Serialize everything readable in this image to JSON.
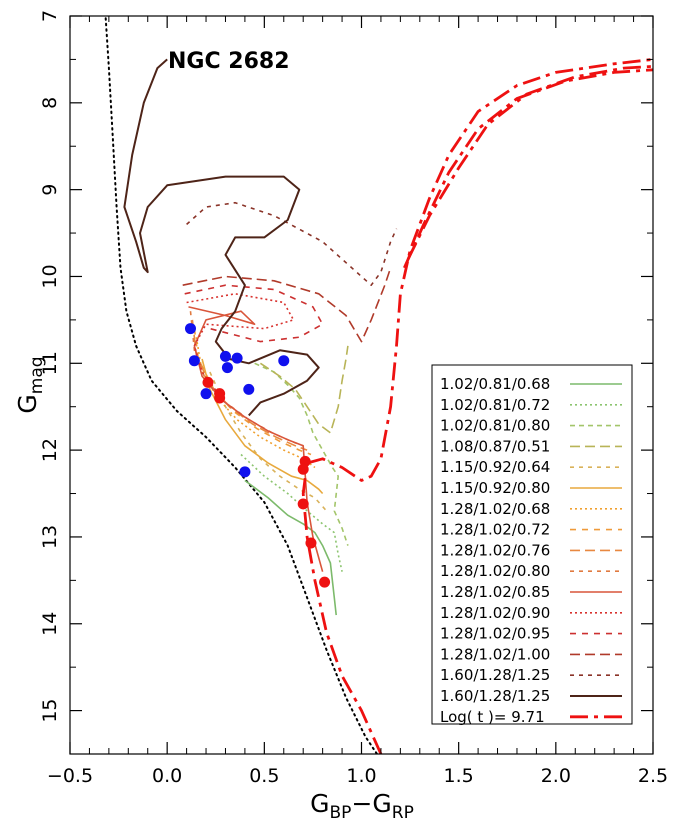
{
  "chart_data": {
    "type": "line",
    "title": "NGC 2682",
    "xlabel": {
      "main": "G",
      "sub1": "BP",
      "sep": "−G",
      "sub2": "RP"
    },
    "ylabel": {
      "main": "G",
      "sub": "mag"
    },
    "xlim": [
      -0.5,
      2.5
    ],
    "ylim": [
      15.5,
      7.0
    ],
    "y_inverted": true,
    "xticks": [
      -0.5,
      0.0,
      0.5,
      1.0,
      1.5,
      2.0,
      2.5
    ],
    "xtick_labels": [
      "−0.5",
      "0.0",
      "0.5",
      "1.0",
      "1.5",
      "2.0",
      "2.5"
    ],
    "yticks": [
      7,
      8,
      9,
      10,
      11,
      12,
      13,
      14,
      15
    ],
    "ytick_labels": [
      "7",
      "8",
      "9",
      "10",
      "11",
      "12",
      "13",
      "14",
      "15"
    ],
    "grid": false,
    "legend_position": "bottom-right",
    "zams": {
      "color": "#000000",
      "points": [
        [
          -0.32,
          6.9
        ],
        [
          -0.3,
          7.6
        ],
        [
          -0.28,
          8.4
        ],
        [
          -0.26,
          9.2
        ],
        [
          -0.24,
          9.9
        ],
        [
          -0.21,
          10.4
        ],
        [
          -0.16,
          10.8
        ],
        [
          -0.08,
          11.2
        ],
        [
          0.05,
          11.55
        ],
        [
          0.2,
          11.85
        ],
        [
          0.35,
          12.2
        ],
        [
          0.5,
          12.6
        ],
        [
          0.62,
          13.1
        ],
        [
          0.72,
          13.7
        ],
        [
          0.82,
          14.3
        ],
        [
          0.92,
          14.85
        ],
        [
          1.02,
          15.3
        ],
        [
          1.08,
          15.5
        ]
      ]
    },
    "series": [
      {
        "name": "1.02/0.81/0.68",
        "color": "#7cba6b",
        "dash": "",
        "width": 1.6,
        "points": [
          [
            0.4,
            12.35
          ],
          [
            0.52,
            12.55
          ],
          [
            0.62,
            12.75
          ],
          [
            0.7,
            12.85
          ],
          [
            0.76,
            12.95
          ],
          [
            0.8,
            13.1
          ],
          [
            0.84,
            13.3
          ],
          [
            0.86,
            13.7
          ],
          [
            0.87,
            13.9
          ]
        ]
      },
      {
        "name": "1.02/0.81/0.72",
        "color": "#8cc46f",
        "dash": "2,3",
        "width": 1.6,
        "points": [
          [
            0.38,
            12.05
          ],
          [
            0.5,
            12.3
          ],
          [
            0.62,
            12.5
          ],
          [
            0.72,
            12.7
          ],
          [
            0.8,
            12.85
          ],
          [
            0.86,
            12.95
          ],
          [
            0.88,
            13.2
          ],
          [
            0.9,
            13.4
          ]
        ]
      },
      {
        "name": "1.02/0.81/0.80",
        "color": "#a3c56a",
        "dash": "5,4",
        "width": 1.6,
        "points": [
          [
            0.45,
            11.0
          ],
          [
            0.55,
            11.1
          ],
          [
            0.62,
            11.25
          ],
          [
            0.68,
            11.4
          ],
          [
            0.72,
            11.6
          ],
          [
            0.75,
            11.8
          ],
          [
            0.8,
            12.0
          ],
          [
            0.85,
            12.2
          ],
          [
            0.88,
            12.3
          ],
          [
            0.86,
            12.7
          ],
          [
            0.9,
            12.9
          ],
          [
            0.93,
            13.1
          ]
        ]
      },
      {
        "name": "1.08/0.87/0.51",
        "color": "#b8b457",
        "dash": "10,5",
        "width": 1.6,
        "points": [
          [
            0.48,
            11.0
          ],
          [
            0.58,
            11.15
          ],
          [
            0.66,
            11.3
          ],
          [
            0.72,
            11.5
          ],
          [
            0.78,
            11.7
          ],
          [
            0.84,
            11.8
          ],
          [
            0.88,
            11.5
          ],
          [
            0.9,
            11.2
          ],
          [
            0.92,
            10.95
          ],
          [
            0.93,
            10.8
          ]
        ]
      },
      {
        "name": "1.15/0.92/0.64",
        "color": "#d9b25a",
        "dash": "4,5",
        "width": 1.6,
        "points": [
          [
            0.22,
            11.1
          ],
          [
            0.3,
            11.5
          ],
          [
            0.38,
            11.8
          ],
          [
            0.48,
            12.1
          ],
          [
            0.58,
            12.3
          ],
          [
            0.68,
            12.45
          ],
          [
            0.76,
            12.55
          ],
          [
            0.82,
            12.7
          ]
        ]
      },
      {
        "name": "1.15/0.92/0.80",
        "color": "#e8a93d",
        "dash": "",
        "width": 1.6,
        "points": [
          [
            0.18,
            10.95
          ],
          [
            0.22,
            11.3
          ],
          [
            0.3,
            11.65
          ],
          [
            0.4,
            11.95
          ],
          [
            0.52,
            12.15
          ],
          [
            0.64,
            12.3
          ],
          [
            0.72,
            12.35
          ],
          [
            0.78,
            12.45
          ],
          [
            0.8,
            12.5
          ]
        ]
      },
      {
        "name": "1.28/1.02/0.68",
        "color": "#f0a030",
        "dash": "2,3",
        "width": 1.6,
        "points": [
          [
            0.15,
            10.7
          ],
          [
            0.18,
            11.1
          ],
          [
            0.26,
            11.4
          ],
          [
            0.36,
            11.65
          ],
          [
            0.48,
            11.85
          ],
          [
            0.6,
            12.0
          ],
          [
            0.7,
            12.1
          ],
          [
            0.76,
            12.2
          ]
        ]
      },
      {
        "name": "1.28/1.02/0.72",
        "color": "#ef9a3a",
        "dash": "6,6",
        "width": 1.6,
        "points": [
          [
            0.14,
            10.6
          ],
          [
            0.16,
            10.95
          ],
          [
            0.24,
            11.3
          ],
          [
            0.34,
            11.55
          ],
          [
            0.46,
            11.75
          ],
          [
            0.58,
            11.9
          ],
          [
            0.68,
            12.0
          ],
          [
            0.74,
            12.05
          ]
        ]
      },
      {
        "name": "1.28/1.02/0.76",
        "color": "#e88840",
        "dash": "10,5",
        "width": 1.6,
        "points": [
          [
            0.13,
            10.5
          ],
          [
            0.15,
            10.9
          ],
          [
            0.22,
            11.25
          ],
          [
            0.32,
            11.5
          ],
          [
            0.44,
            11.7
          ],
          [
            0.56,
            11.85
          ],
          [
            0.66,
            11.95
          ],
          [
            0.72,
            12.0
          ]
        ]
      },
      {
        "name": "1.28/1.02/0.80",
        "color": "#e07a40",
        "dash": "4,5",
        "width": 1.6,
        "points": [
          [
            0.12,
            10.4
          ],
          [
            0.14,
            10.85
          ],
          [
            0.2,
            11.2
          ],
          [
            0.3,
            11.45
          ],
          [
            0.42,
            11.65
          ],
          [
            0.54,
            11.8
          ],
          [
            0.64,
            11.9
          ],
          [
            0.7,
            11.95
          ]
        ]
      },
      {
        "name": "1.28/1.02/0.85",
        "color": "#d9553a",
        "dash": "",
        "width": 1.6,
        "points": [
          [
            0.11,
            10.35
          ],
          [
            0.3,
            10.45
          ],
          [
            0.45,
            10.55
          ],
          [
            0.38,
            10.4
          ],
          [
            0.2,
            10.5
          ],
          [
            0.14,
            10.8
          ],
          [
            0.18,
            11.15
          ],
          [
            0.28,
            11.42
          ],
          [
            0.4,
            11.62
          ],
          [
            0.52,
            11.78
          ],
          [
            0.62,
            11.88
          ],
          [
            0.7,
            11.95
          ],
          [
            0.72,
            12.6
          ],
          [
            0.75,
            13.0
          ],
          [
            0.8,
            13.4
          ]
        ]
      },
      {
        "name": "1.28/1.02/0.90",
        "color": "#d8322e",
        "dash": "2,3",
        "width": 1.6,
        "points": [
          [
            0.1,
            10.3
          ],
          [
            0.35,
            10.2
          ],
          [
            0.6,
            10.3
          ],
          [
            0.65,
            10.5
          ],
          [
            0.5,
            10.6
          ],
          [
            0.2,
            10.55
          ],
          [
            0.14,
            10.8
          ],
          [
            0.18,
            11.1
          ],
          [
            0.28,
            11.4
          ]
        ]
      },
      {
        "name": "1.28/1.02/0.95",
        "color": "#cc3030",
        "dash": "6,6",
        "width": 1.6,
        "points": [
          [
            0.09,
            10.2
          ],
          [
            0.3,
            10.1
          ],
          [
            0.55,
            10.15
          ],
          [
            0.75,
            10.35
          ],
          [
            0.8,
            10.55
          ],
          [
            0.68,
            10.7
          ],
          [
            0.48,
            10.75
          ],
          [
            0.22,
            10.6
          ]
        ]
      },
      {
        "name": "1.28/1.02/1.00",
        "color": "#b03a2a",
        "dash": "10,5",
        "width": 1.6,
        "points": [
          [
            0.08,
            10.1
          ],
          [
            0.3,
            10.0
          ],
          [
            0.55,
            10.05
          ],
          [
            0.78,
            10.2
          ],
          [
            0.92,
            10.45
          ],
          [
            1.0,
            10.75
          ],
          [
            1.05,
            10.5
          ],
          [
            1.12,
            10.1
          ],
          [
            1.15,
            9.9
          ]
        ]
      },
      {
        "name": "1.60/1.28/1.25",
        "color": "#8a3328",
        "dash": "4,5",
        "width": 1.6,
        "points": [
          [
            0.1,
            9.4
          ],
          [
            0.2,
            9.2
          ],
          [
            0.35,
            9.15
          ],
          [
            0.55,
            9.3
          ],
          [
            0.8,
            9.6
          ],
          [
            1.0,
            10.0
          ],
          [
            1.05,
            10.1
          ],
          [
            1.1,
            9.95
          ],
          [
            1.15,
            9.6
          ],
          [
            1.18,
            9.45
          ]
        ]
      },
      {
        "name": "1.60/1.28/1.25",
        "color": "#4e2418",
        "dash": "",
        "width": 2.0,
        "points": [
          [
            0.0,
            7.5
          ],
          [
            -0.05,
            7.6
          ],
          [
            -0.12,
            8.0
          ],
          [
            -0.18,
            8.6
          ],
          [
            -0.22,
            9.2
          ],
          [
            -0.16,
            9.6
          ],
          [
            -0.12,
            9.9
          ],
          [
            -0.1,
            9.95
          ],
          [
            -0.14,
            9.5
          ],
          [
            -0.1,
            9.2
          ],
          [
            0.0,
            8.95
          ],
          [
            0.3,
            8.85
          ],
          [
            0.6,
            8.85
          ],
          [
            0.68,
            9.0
          ],
          [
            0.62,
            9.35
          ],
          [
            0.5,
            9.55
          ],
          [
            0.35,
            9.55
          ],
          [
            0.3,
            9.75
          ],
          [
            0.4,
            10.1
          ],
          [
            0.35,
            10.4
          ],
          [
            0.28,
            10.6
          ],
          [
            0.25,
            10.75
          ],
          [
            0.32,
            10.95
          ],
          [
            0.42,
            11.0
          ],
          [
            0.58,
            10.85
          ],
          [
            0.72,
            10.9
          ],
          [
            0.78,
            11.05
          ],
          [
            0.72,
            11.2
          ],
          [
            0.6,
            11.35
          ],
          [
            0.48,
            11.45
          ],
          [
            0.42,
            11.6
          ]
        ]
      },
      {
        "name": "Log( t )= 9.71",
        "color": "#ee1111",
        "dash": "18,6,4,6",
        "width": 2.8,
        "points": [
          [
            1.1,
            15.5
          ],
          [
            1.0,
            15.0
          ],
          [
            0.9,
            14.6
          ],
          [
            0.82,
            14.1
          ],
          [
            0.76,
            13.5
          ],
          [
            0.72,
            13.0
          ],
          [
            0.7,
            12.5
          ],
          [
            0.72,
            12.15
          ],
          [
            0.8,
            12.1
          ],
          [
            0.9,
            12.2
          ],
          [
            1.0,
            12.35
          ],
          [
            1.05,
            12.3
          ],
          [
            1.1,
            12.1
          ],
          [
            1.15,
            11.5
          ],
          [
            1.18,
            10.8
          ],
          [
            1.2,
            10.2
          ],
          [
            1.25,
            9.7
          ],
          [
            1.35,
            9.1
          ],
          [
            1.45,
            8.6
          ],
          [
            1.6,
            8.1
          ],
          [
            1.8,
            7.8
          ],
          [
            2.0,
            7.65
          ],
          [
            2.3,
            7.55
          ],
          [
            2.5,
            7.5
          ]
        ]
      }
    ],
    "extra_red_tracks": [
      [
        [
          1.22,
          9.9
        ],
        [
          1.32,
          9.4
        ],
        [
          1.45,
          8.8
        ],
        [
          1.6,
          8.3
        ],
        [
          1.8,
          7.95
        ],
        [
          2.05,
          7.75
        ],
        [
          2.3,
          7.65
        ],
        [
          2.5,
          7.62
        ]
      ],
      [
        [
          1.24,
          9.8
        ],
        [
          1.35,
          9.3
        ],
        [
          1.5,
          8.75
        ],
        [
          1.65,
          8.25
        ],
        [
          1.85,
          7.9
        ],
        [
          2.1,
          7.7
        ],
        [
          2.35,
          7.6
        ],
        [
          2.5,
          7.58
        ]
      ]
    ],
    "blue_points": [
      [
        0.12,
        10.6
      ],
      [
        0.14,
        10.97
      ],
      [
        0.3,
        10.92
      ],
      [
        0.36,
        10.94
      ],
      [
        0.6,
        10.97
      ],
      [
        0.31,
        11.05
      ],
      [
        0.2,
        11.35
      ],
      [
        0.42,
        11.3
      ],
      [
        0.4,
        12.25
      ]
    ],
    "red_points": [
      [
        0.21,
        11.22
      ],
      [
        0.27,
        11.35
      ],
      [
        0.27,
        11.4
      ],
      [
        0.71,
        12.13
      ],
      [
        0.7,
        12.22
      ],
      [
        0.7,
        12.62
      ],
      [
        0.74,
        13.07
      ],
      [
        0.81,
        13.52
      ]
    ]
  }
}
